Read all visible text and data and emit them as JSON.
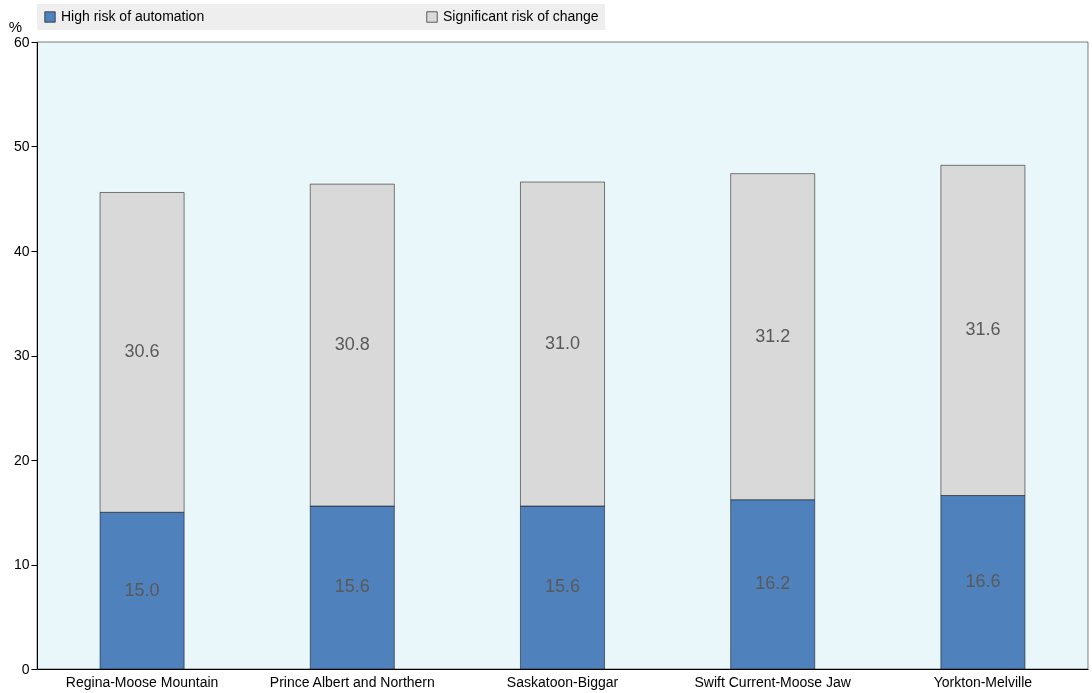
{
  "chart_data": {
    "type": "bar",
    "stacked": true,
    "ylabel": "%",
    "categories": [
      "Regina-Moose Mountain",
      "Prince Albert and Northern",
      "Saskatoon-Biggar",
      "Swift Current-Moose Jaw",
      "Yorkton-Melville"
    ],
    "series": [
      {
        "name": "High risk of automation",
        "color": "#4f81bd",
        "values": [
          15.0,
          15.6,
          15.6,
          16.2,
          16.6
        ],
        "value_labels": [
          "15.0",
          "15.6",
          "15.6",
          "16.2",
          "16.6"
        ]
      },
      {
        "name": "Significant risk of change",
        "color": "#d9d9d9",
        "values": [
          30.6,
          30.8,
          31.0,
          31.2,
          31.6
        ],
        "value_labels": [
          "30.6",
          "30.8",
          "31.0",
          "31.2",
          "31.6"
        ]
      }
    ],
    "ylim": [
      0,
      60
    ],
    "yticks": [
      0,
      10,
      20,
      30,
      40,
      50,
      60
    ],
    "legend": "top",
    "grid": false
  }
}
